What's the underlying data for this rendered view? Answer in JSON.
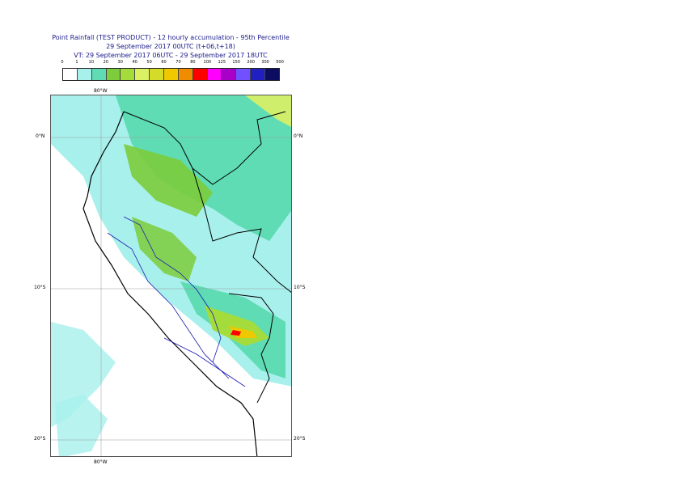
{
  "title": {
    "line1": "Point Rainfall (TEST PRODUCT) - 12 hourly accumulation - 95th Percentile",
    "line2": "29 September 2017 00UTC (t+06,t+18)",
    "line3": "VT: 29 September 2017 06UTC - 29 September 2017 18UTC"
  },
  "legend": {
    "labels": [
      "0",
      "1",
      "10",
      "20",
      "30",
      "40",
      "50",
      "60",
      "70",
      "80",
      "100",
      "125",
      "150",
      "200",
      "300",
      "500"
    ],
    "colors": [
      "#ffffff",
      "#a8f0ec",
      "#5fdcb4",
      "#7ccc3c",
      "#a4dc3c",
      "#dcf064",
      "#d4dc28",
      "#f0c800",
      "#f08c00",
      "#ff0000",
      "#ff00ff",
      "#a800c8",
      "#7050ff",
      "#2020c0",
      "#0c0c60"
    ]
  },
  "map": {
    "lat_labels": {
      "lat0_left": "0°N",
      "lat0_right": "0°N",
      "lat10_left": "10°S",
      "lat10_right": "10°S",
      "lat20_left": "20°S",
      "lat20_right": "20°S"
    },
    "lon_labels": {
      "top": "80°W",
      "bottom": "80°W"
    }
  }
}
